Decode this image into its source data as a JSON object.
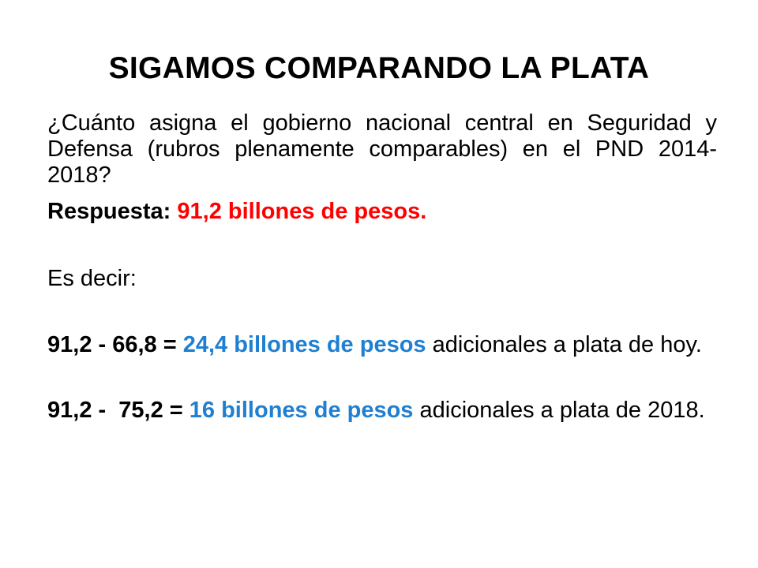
{
  "title": "SIGAMOS COMPARANDO LA PLATA",
  "question": "¿Cuánto asigna el gobierno nacional central en Seguridad y Defensa (rubros plenamente comparables) en el PND 2014-2018?",
  "answer": {
    "label": "Respuesta:",
    "value": "91,2 billones de pesos."
  },
  "es_decir": "Es decir:",
  "calc1": {
    "formula": "91,2 - 66,8 =",
    "result": "24,4 billones de pesos",
    "suffix": "adicionales a plata de hoy."
  },
  "calc2": {
    "formula": "91,2 -  75,2 =",
    "result": "16 billones de pesos",
    "suffix": "adicionales a plata de 2018."
  },
  "colors": {
    "answer": "#ff0000",
    "result": "#1f7fd1"
  }
}
